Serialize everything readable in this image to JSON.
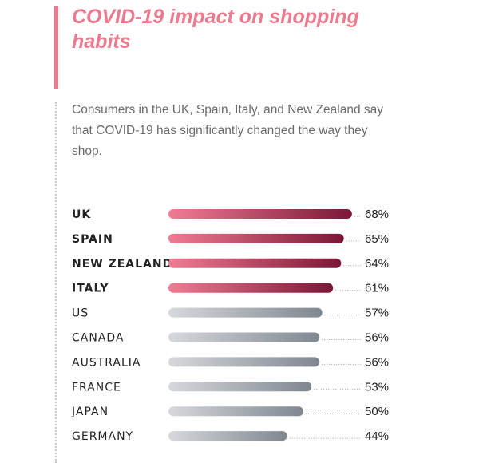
{
  "header": {
    "title": "COVID-19 impact on shopping habits",
    "subtitle": "Consumers in the UK, Spain, Italy, and New Zealand say that COVID-19 has significantly changed the way they shop."
  },
  "colors": {
    "accent": "#ec7a8f",
    "highlight_start": "#f07c93",
    "highlight_end": "#7a1736",
    "gray_start": "#d6d8dc",
    "gray_end": "#7f8790"
  },
  "chart_data": {
    "type": "bar",
    "orientation": "horizontal",
    "categories": [
      "UK",
      "SPAIN",
      "NEW ZEALAND",
      "ITALY",
      "US",
      "CANADA",
      "AUSTRALIA",
      "FRANCE",
      "JAPAN",
      "GERMANY"
    ],
    "values": [
      68,
      65,
      64,
      61,
      57,
      56,
      56,
      53,
      50,
      44
    ],
    "value_labels": [
      "68%",
      "65%",
      "64%",
      "61%",
      "57%",
      "56%",
      "56%",
      "53%",
      "50%",
      "44%"
    ],
    "highlighted": [
      "UK",
      "SPAIN",
      "NEW ZEALAND",
      "ITALY"
    ],
    "unit": "%",
    "grid": false
  }
}
